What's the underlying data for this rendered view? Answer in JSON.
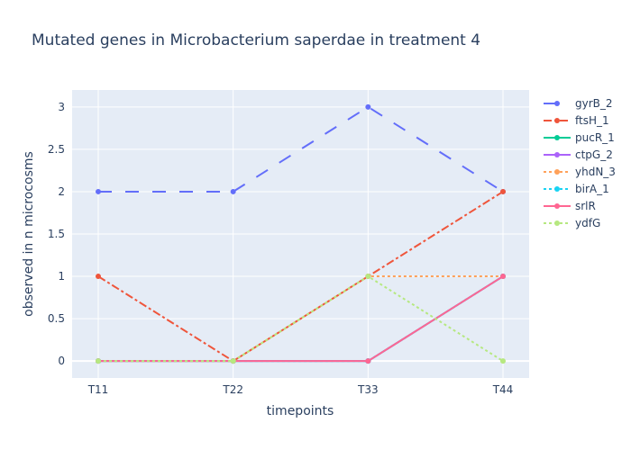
{
  "chart_data": {
    "type": "line",
    "title": "Mutated genes in Microbacterium saperdae in treatment 4",
    "xlabel": "timepoints",
    "ylabel": "observed in n microcosms",
    "categories": [
      "T11",
      "T22",
      "T33",
      "T44"
    ],
    "ylim": [
      -0.2,
      3.2
    ],
    "yticks": [
      0,
      0.5,
      1,
      1.5,
      2,
      2.5,
      3
    ],
    "ytick_labels": [
      "0",
      "0.5",
      "1",
      "1.5",
      "2",
      "2.5",
      "3"
    ],
    "grid": true,
    "legend_position": "right",
    "plot_background": "#e5ecf6",
    "series": [
      {
        "name": "gyrB_2",
        "values": [
          2,
          2,
          3,
          2
        ],
        "color": "#636efa",
        "dash": "longdash"
      },
      {
        "name": "ftsH_1",
        "values": [
          1,
          0,
          1,
          2
        ],
        "color": "#ef553b",
        "dash": "dashdot"
      },
      {
        "name": "pucR_1",
        "values": [
          0,
          0,
          0,
          1
        ],
        "color": "#00cc96",
        "dash": "solid"
      },
      {
        "name": "ctpG_2",
        "values": [
          0,
          0,
          0,
          1
        ],
        "color": "#ab63fa",
        "dash": "solid"
      },
      {
        "name": "yhdN_3",
        "values": [
          0,
          0,
          1,
          1
        ],
        "color": "#ffa15a",
        "dash": "dot"
      },
      {
        "name": "birA_1",
        "values": [
          0,
          0,
          0,
          1
        ],
        "color": "#19d3f3",
        "dash": "dot"
      },
      {
        "name": "srlR",
        "values": [
          0,
          0,
          0,
          1
        ],
        "color": "#ff6692",
        "dash": "solid"
      },
      {
        "name": "ydfG",
        "values": [
          0,
          0,
          1,
          0
        ],
        "color": "#b6e880",
        "dash": "dot"
      }
    ]
  }
}
